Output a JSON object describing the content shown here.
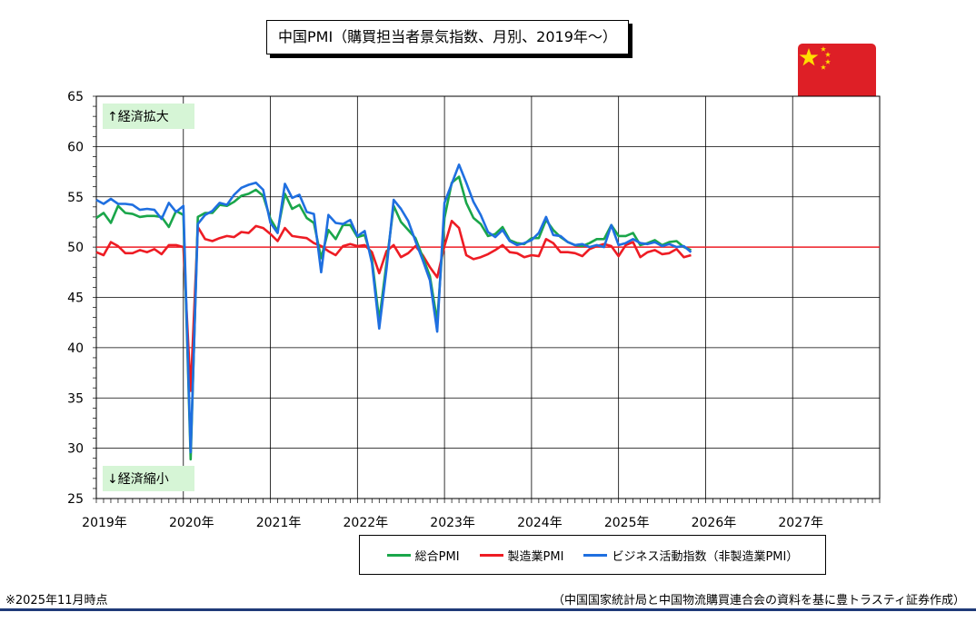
{
  "title": "中国PMI（購買担当者景気指数、月別、2019年〜）",
  "note": "※2025年11月時点",
  "source": "（中国国家統計局と中国物流購買連合会の資料を基に豊トラスティ証券作成）",
  "flag_icon": "china-flag-icon",
  "colors": {
    "composite": "#1aa64a",
    "manufacturing": "#ee1c24",
    "nonmanufacturing": "#1f6fe0",
    "reference_line": "#ee1c24",
    "annotation_bg": "#d6f5d6",
    "flag_red": "#de1f26",
    "flag_star": "#ffde00"
  },
  "chart_data": {
    "type": "line",
    "title": "中国PMI（購買担当者景気指数、月別、2019年〜）",
    "xlabel": "",
    "ylabel": "",
    "ylim": [
      25,
      65
    ],
    "yticks": [
      25,
      30,
      35,
      40,
      45,
      50,
      55,
      60,
      65
    ],
    "xlim": [
      2019.0,
      2028.0
    ],
    "xtick_labels": [
      "2019年",
      "2020年",
      "2021年",
      "2022年",
      "2023年",
      "2024年",
      "2025年",
      "2026年",
      "2027年"
    ],
    "xtick_values": [
      2019,
      2020,
      2021,
      2022,
      2023,
      2024,
      2025,
      2026,
      2027
    ],
    "reference_line": 50,
    "grid": true,
    "annotations": [
      {
        "text": "↑経済拡大",
        "position": "top-left"
      },
      {
        "text": "↓経済縮小",
        "position": "bottom-left"
      }
    ],
    "legend_position": "bottom",
    "start": "2019-01",
    "series": [
      {
        "name": "総合PMI",
        "color_key": "composite",
        "values": [
          52.9,
          53.4,
          52.4,
          54.1,
          53.4,
          53.3,
          53.0,
          53.1,
          53.1,
          53.0,
          52.0,
          53.6,
          53.2,
          28.9,
          53.0,
          53.4,
          53.4,
          54.2,
          54.1,
          54.5,
          55.1,
          55.3,
          55.7,
          55.1,
          52.8,
          51.6,
          55.3,
          53.8,
          54.2,
          52.9,
          52.4,
          48.9,
          51.7,
          50.8,
          52.2,
          52.2,
          51.0,
          51.2,
          48.8,
          42.7,
          48.4,
          54.1,
          52.5,
          51.7,
          50.9,
          49.0,
          47.1,
          42.6,
          52.9,
          56.4,
          57.0,
          54.4,
          52.9,
          52.3,
          51.1,
          51.3,
          52.0,
          50.7,
          50.4,
          50.3,
          50.9,
          50.9,
          52.7,
          51.7,
          51.0,
          50.5,
          50.2,
          50.1,
          50.4,
          50.8,
          50.8,
          52.2,
          51.1,
          51.1,
          51.4,
          50.2,
          50.4,
          50.7,
          50.2,
          50.5,
          50.6,
          50.0,
          49.7
        ]
      },
      {
        "name": "製造業PMI",
        "color_key": "manufacturing",
        "values": [
          49.5,
          49.2,
          50.5,
          50.1,
          49.4,
          49.4,
          49.7,
          49.5,
          49.8,
          49.3,
          50.2,
          50.2,
          50.0,
          35.7,
          52.0,
          50.8,
          50.6,
          50.9,
          51.1,
          51.0,
          51.5,
          51.4,
          52.1,
          51.9,
          51.3,
          50.6,
          51.9,
          51.1,
          51.0,
          50.9,
          50.4,
          50.1,
          49.6,
          49.2,
          50.1,
          50.3,
          50.1,
          50.2,
          49.5,
          47.4,
          49.6,
          50.2,
          49.0,
          49.4,
          50.1,
          49.2,
          48.0,
          47.0,
          50.1,
          52.6,
          51.9,
          49.2,
          48.8,
          49.0,
          49.3,
          49.7,
          50.2,
          49.5,
          49.4,
          49.0,
          49.2,
          49.1,
          50.8,
          50.4,
          49.5,
          49.5,
          49.4,
          49.1,
          49.8,
          50.1,
          50.3,
          50.1,
          49.1,
          50.2,
          50.5,
          49.0,
          49.5,
          49.7,
          49.3,
          49.4,
          49.8,
          49.0,
          49.2
        ]
      },
      {
        "name": "ビジネス活動指数（非製造業PMI）",
        "color_key": "nonmanufacturing",
        "values": [
          54.7,
          54.3,
          54.8,
          54.3,
          54.3,
          54.2,
          53.7,
          53.8,
          53.7,
          52.8,
          54.4,
          53.5,
          54.1,
          29.6,
          52.3,
          53.2,
          53.6,
          54.4,
          54.2,
          55.2,
          55.9,
          56.2,
          56.4,
          55.7,
          52.4,
          51.4,
          56.3,
          54.9,
          55.2,
          53.5,
          53.3,
          47.5,
          53.2,
          52.4,
          52.3,
          52.7,
          51.1,
          51.6,
          48.4,
          41.9,
          47.8,
          54.7,
          53.8,
          52.6,
          50.6,
          48.7,
          46.7,
          41.6,
          54.4,
          56.3,
          58.2,
          56.4,
          54.5,
          53.2,
          51.5,
          51.0,
          51.7,
          50.6,
          50.2,
          50.4,
          50.7,
          51.4,
          53.0,
          51.2,
          51.1,
          50.5,
          50.2,
          50.3,
          50.0,
          50.2,
          50.0,
          52.2,
          50.2,
          50.4,
          50.8,
          50.4,
          50.3,
          50.5,
          50.1,
          50.3,
          50.0,
          50.1,
          49.5
        ]
      }
    ]
  }
}
